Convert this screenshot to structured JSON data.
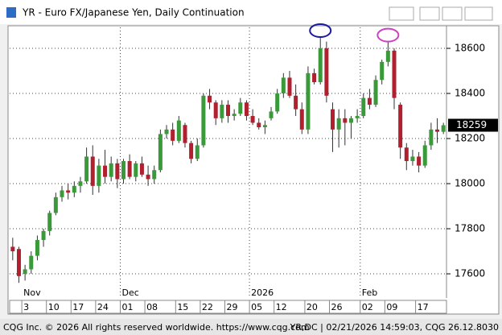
{
  "window_title": "YR - Euro FX/Japanese Yen, Daily Continuation",
  "footer": {
    "left": "CQG Inc. © 2026 All rights reserved worldwide. https://www.cqg.com",
    "right": "YR,DC | 02/21/2026 14:59:03, CQG 26.12.8030"
  },
  "chart_data": {
    "type": "candlestick",
    "categories": [
      null,
      null,
      "3",
      null,
      null,
      null,
      "10",
      null,
      null,
      null,
      "17",
      null,
      null,
      null,
      "24",
      null,
      null,
      null,
      "01",
      null,
      null,
      null,
      "08",
      null,
      null,
      null,
      null,
      "15",
      null,
      null,
      null,
      "22",
      null,
      null,
      null,
      "29",
      null,
      null,
      null,
      "05",
      null,
      null,
      null,
      "12",
      null,
      null,
      null,
      null,
      "20",
      null,
      null,
      null,
      "26",
      null,
      null,
      null,
      null,
      "02",
      null,
      null,
      null,
      "09",
      null,
      null,
      null,
      null,
      "17",
      null,
      null,
      null,
      null
    ],
    "months": [
      null,
      null,
      "Nov",
      null,
      null,
      null,
      null,
      null,
      null,
      null,
      null,
      null,
      null,
      null,
      null,
      null,
      null,
      null,
      "Dec",
      null,
      null,
      null,
      null,
      null,
      null,
      null,
      null,
      null,
      null,
      null,
      null,
      null,
      null,
      null,
      null,
      null,
      null,
      null,
      null,
      "2026",
      null,
      null,
      null,
      null,
      null,
      null,
      null,
      null,
      null,
      null,
      null,
      null,
      null,
      null,
      null,
      null,
      null,
      "Feb",
      null,
      null,
      null,
      null,
      null,
      null,
      null,
      null,
      null,
      null,
      null,
      null,
      null
    ],
    "open": [
      17720,
      17710,
      17600,
      17620,
      17680,
      17750,
      17790,
      17870,
      17940,
      17970,
      17960,
      17990,
      18010,
      18120,
      17990,
      18080,
      18030,
      18090,
      18020,
      18100,
      18030,
      18090,
      18040,
      18020,
      18060,
      18220,
      18240,
      18190,
      18260,
      18180,
      18110,
      18170,
      18390,
      18360,
      18290,
      18350,
      18300,
      18310,
      18360,
      18300,
      18270,
      18250,
      18290,
      18320,
      18400,
      18470,
      18390,
      18330,
      18240,
      18490,
      18450,
      18600,
      18330,
      18240,
      18290,
      18270,
      18290,
      18300,
      18380,
      18350,
      18460,
      18540,
      18590,
      18350,
      18160,
      18100,
      18120,
      18080,
      18170,
      18240,
      18230
    ],
    "high": [
      17760,
      17720,
      17640,
      17700,
      17770,
      17800,
      17880,
      17960,
      17990,
      18000,
      18010,
      18030,
      18160,
      18170,
      18110,
      18150,
      18120,
      18110,
      18110,
      18130,
      18100,
      18120,
      18080,
      18080,
      18240,
      18260,
      18270,
      18300,
      18270,
      18190,
      18200,
      18400,
      18420,
      18370,
      18370,
      18370,
      18330,
      18380,
      18370,
      18330,
      18290,
      18280,
      18340,
      18420,
      18490,
      18500,
      18440,
      18360,
      18520,
      18510,
      18650,
      18630,
      18360,
      18330,
      18330,
      18300,
      18330,
      18400,
      18420,
      18480,
      18550,
      18630,
      18600,
      18360,
      18180,
      18150,
      18140,
      18190,
      18270,
      18290,
      18270
    ],
    "low": [
      17660,
      17560,
      17570,
      17600,
      17660,
      17720,
      17770,
      17860,
      17920,
      17930,
      17940,
      17960,
      18000,
      17950,
      17960,
      18000,
      18010,
      17980,
      18000,
      18020,
      18010,
      18030,
      17990,
      18000,
      18050,
      18200,
      18170,
      18180,
      18160,
      18090,
      18100,
      18160,
      18330,
      18260,
      18270,
      18270,
      18280,
      18300,
      18280,
      18260,
      18240,
      18220,
      18280,
      18310,
      18380,
      18380,
      18300,
      18220,
      18220,
      18440,
      18440,
      18360,
      18140,
      18160,
      18170,
      18200,
      18270,
      18290,
      18330,
      18340,
      18440,
      18520,
      18330,
      18110,
      18060,
      18080,
      18050,
      18070,
      18150,
      18180,
      18220
    ],
    "close": [
      17700,
      17590,
      17620,
      17680,
      17750,
      17790,
      17870,
      17940,
      17970,
      17960,
      17990,
      18010,
      18120,
      17990,
      18080,
      18030,
      18090,
      18020,
      18100,
      18030,
      18090,
      18040,
      18020,
      18060,
      18220,
      18240,
      18190,
      18280,
      18180,
      18110,
      18170,
      18390,
      18360,
      18290,
      18350,
      18300,
      18310,
      18360,
      18300,
      18270,
      18250,
      18260,
      18320,
      18400,
      18470,
      18390,
      18330,
      18240,
      18490,
      18450,
      18600,
      18390,
      18240,
      18290,
      18270,
      18290,
      18300,
      18380,
      18350,
      18460,
      18540,
      18590,
      18380,
      18160,
      18100,
      18120,
      18080,
      18170,
      18240,
      18230,
      18259
    ],
    "ylim": [
      17493,
      18693
    ],
    "yticks": [
      17600,
      17800,
      18000,
      18200,
      18400,
      18600
    ],
    "grid": true,
    "up_color": "#3a9a3a",
    "down_color": "#b0202e",
    "wick_color": "#333333"
  }
}
